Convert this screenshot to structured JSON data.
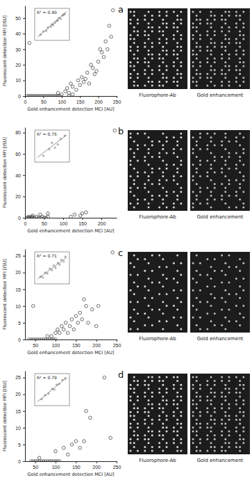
{
  "chart_data": [
    {
      "type": "scatter",
      "title": "a",
      "x_label": "Gold enhancement detection MCI [AU]",
      "y_label": "Fluorescent detection MFI [ISU]",
      "xlim": [
        0,
        250
      ],
      "ylim": [
        0,
        58
      ],
      "xticks": [
        0,
        50,
        100,
        150,
        200,
        250
      ],
      "yticks": [
        0,
        10,
        20,
        30,
        40,
        50
      ],
      "x": [
        5,
        10,
        15,
        20,
        25,
        30,
        35,
        40,
        45,
        50,
        55,
        60,
        65,
        70,
        75,
        80,
        85,
        90,
        95,
        12,
        90,
        100,
        110,
        115,
        120,
        120,
        125,
        130,
        130,
        140,
        145,
        150,
        155,
        160,
        165,
        170,
        175,
        180,
        185,
        190,
        195,
        200,
        205,
        210,
        215,
        220,
        225,
        230,
        235,
        240
      ],
      "values": [
        0,
        0,
        0,
        0,
        0,
        0,
        0,
        0,
        0,
        0,
        0,
        0,
        0,
        0,
        0,
        0,
        0,
        0,
        0,
        34,
        2,
        1,
        3,
        5,
        2,
        0,
        8,
        6,
        1,
        4,
        10,
        7,
        12,
        9,
        11,
        15,
        8,
        20,
        18,
        14,
        16,
        22,
        30,
        28,
        25,
        35,
        30,
        45,
        38,
        55
      ],
      "inset": {
        "type": "scatter",
        "annotation": "R² = 0.90",
        "tick_labels": false,
        "xlim": [
          0,
          6
        ],
        "ylim": [
          0,
          4
        ],
        "x": [
          1,
          1.5,
          2,
          2.3,
          2.8,
          3,
          3.2,
          3.5,
          3.8,
          4,
          4.2,
          4.5,
          4.8,
          5,
          5.2
        ],
        "values": [
          0.7,
          1.1,
          1.2,
          1.6,
          1.7,
          2.0,
          1.9,
          2.2,
          2.4,
          2.5,
          2.8,
          2.7,
          3.1,
          3.2,
          3.3
        ],
        "fit": {
          "x": [
            0.5,
            5.5
          ],
          "values": [
            0.4,
            3.6
          ]
        }
      }
    },
    {
      "type": "scatter",
      "title": "b",
      "x_label": "Gold enhancement detection MCI [AU]",
      "y_label": "Fluorescent detection MFI [ISU]",
      "xlim": [
        0,
        240
      ],
      "ylim": [
        0,
        85
      ],
      "xticks": [
        0,
        50,
        100,
        150,
        200
      ],
      "yticks": [
        0,
        20,
        40,
        60,
        80
      ],
      "x": [
        5,
        8,
        10,
        12,
        15,
        18,
        20,
        25,
        30,
        35,
        40,
        45,
        50,
        55,
        60,
        60,
        40,
        20,
        120,
        130,
        145,
        150,
        160,
        235
      ],
      "values": [
        0,
        0,
        1,
        0,
        0,
        1,
        0,
        0,
        1,
        0,
        0,
        1,
        0,
        0,
        1,
        4,
        3,
        2,
        1,
        3,
        2,
        4,
        5,
        82
      ],
      "inset": {
        "type": "scatter",
        "annotation": "R² = 0.75",
        "tick_labels": false,
        "xlim": [
          0,
          6
        ],
        "ylim": [
          0,
          4
        ],
        "x": [
          1.5,
          2.5,
          3,
          3.5,
          4,
          4.5,
          5.2
        ],
        "values": [
          0.8,
          1.6,
          2.4,
          1.8,
          2.2,
          2.9,
          3.3
        ],
        "fit": {
          "x": [
            0.5,
            5.5
          ],
          "values": [
            0.6,
            3.4
          ]
        }
      }
    },
    {
      "type": "scatter",
      "title": "c",
      "x_label": "Gold enhancement detection MCI [AU]",
      "y_label": "Fluorescent detection MFI [ISU]",
      "xlim": [
        25,
        250
      ],
      "ylim": [
        0,
        27
      ],
      "xticks": [
        50,
        100,
        150,
        200,
        250
      ],
      "yticks": [
        0,
        5,
        10,
        15,
        20,
        25
      ],
      "x": [
        35,
        40,
        45,
        50,
        55,
        60,
        65,
        70,
        75,
        80,
        85,
        90,
        95,
        100,
        80,
        90,
        100,
        105,
        110,
        115,
        120,
        125,
        130,
        135,
        140,
        145,
        150,
        155,
        160,
        165,
        170,
        175,
        180,
        190,
        200,
        205,
        240,
        45
      ],
      "values": [
        0,
        0,
        0,
        0,
        0,
        0,
        0,
        0,
        0,
        0,
        0,
        0,
        0,
        0,
        1,
        1,
        2,
        3,
        2,
        4,
        3,
        5,
        2,
        4,
        6,
        3,
        7,
        5,
        8,
        6,
        12,
        10,
        5,
        9,
        4,
        10,
        26,
        10
      ],
      "inset": {
        "type": "scatter",
        "annotation": "R² = 0.71",
        "tick_labels": false,
        "xlim": [
          0,
          6
        ],
        "ylim": [
          0,
          4
        ],
        "x": [
          1,
          1.4,
          1.8,
          2.2,
          2.6,
          3,
          3.3,
          3.6,
          4,
          4.3,
          4.6,
          5,
          5.3
        ],
        "values": [
          0.9,
          0.8,
          1.4,
          1.3,
          1.9,
          1.7,
          2.3,
          2.0,
          2.6,
          2.4,
          3.0,
          2.8,
          3.4
        ],
        "fit": {
          "x": [
            0.5,
            5.5
          ],
          "values": [
            0.6,
            3.3
          ]
        }
      }
    },
    {
      "type": "scatter",
      "title": "d",
      "x_label": "Gold enhancement detection MCI [AU]",
      "y_label": "Fluorescent detection MFI [ISU]",
      "xlim": [
        25,
        250
      ],
      "ylim": [
        0,
        27
      ],
      "xticks": [
        50,
        100,
        150,
        200,
        250
      ],
      "yticks": [
        0,
        5,
        10,
        15,
        20,
        25
      ],
      "x": [
        40,
        45,
        50,
        55,
        60,
        65,
        70,
        75,
        80,
        85,
        90,
        95,
        100,
        105,
        110,
        60,
        100,
        120,
        130,
        140,
        150,
        160,
        170,
        175,
        185,
        220,
        235
      ],
      "values": [
        0,
        0,
        0,
        0,
        0,
        0,
        0,
        0,
        0,
        0,
        0,
        0,
        0,
        0,
        0,
        1,
        3,
        4,
        2,
        5,
        6,
        4,
        6,
        15,
        13,
        25,
        7
      ],
      "inset": {
        "type": "scatter",
        "annotation": "R² = 0.79",
        "tick_labels": false,
        "xlim": [
          0,
          6
        ],
        "ylim": [
          0,
          4
        ],
        "x": [
          1.2,
          1.8,
          2.4,
          3,
          3.4,
          3.8,
          4.2,
          4.8,
          5.3
        ],
        "values": [
          0.8,
          1.3,
          1.5,
          2.1,
          2.0,
          2.6,
          2.7,
          3.2,
          3.4
        ],
        "fit": {
          "x": [
            0.5,
            5.5
          ],
          "values": [
            0.5,
            3.5
          ]
        }
      }
    }
  ],
  "array_images": [
    {
      "labels": [
        "Fluorophore-Ab",
        "Gold enhancement"
      ]
    },
    {
      "labels": [
        "Fluorophore-Ab",
        "Gold enhancement"
      ]
    },
    {
      "labels": [
        "Fluorophore-Ab",
        "Gold enhancement"
      ]
    },
    {
      "labels": [
        "Fluorophore-Ab",
        "Gold enhancement"
      ]
    }
  ]
}
